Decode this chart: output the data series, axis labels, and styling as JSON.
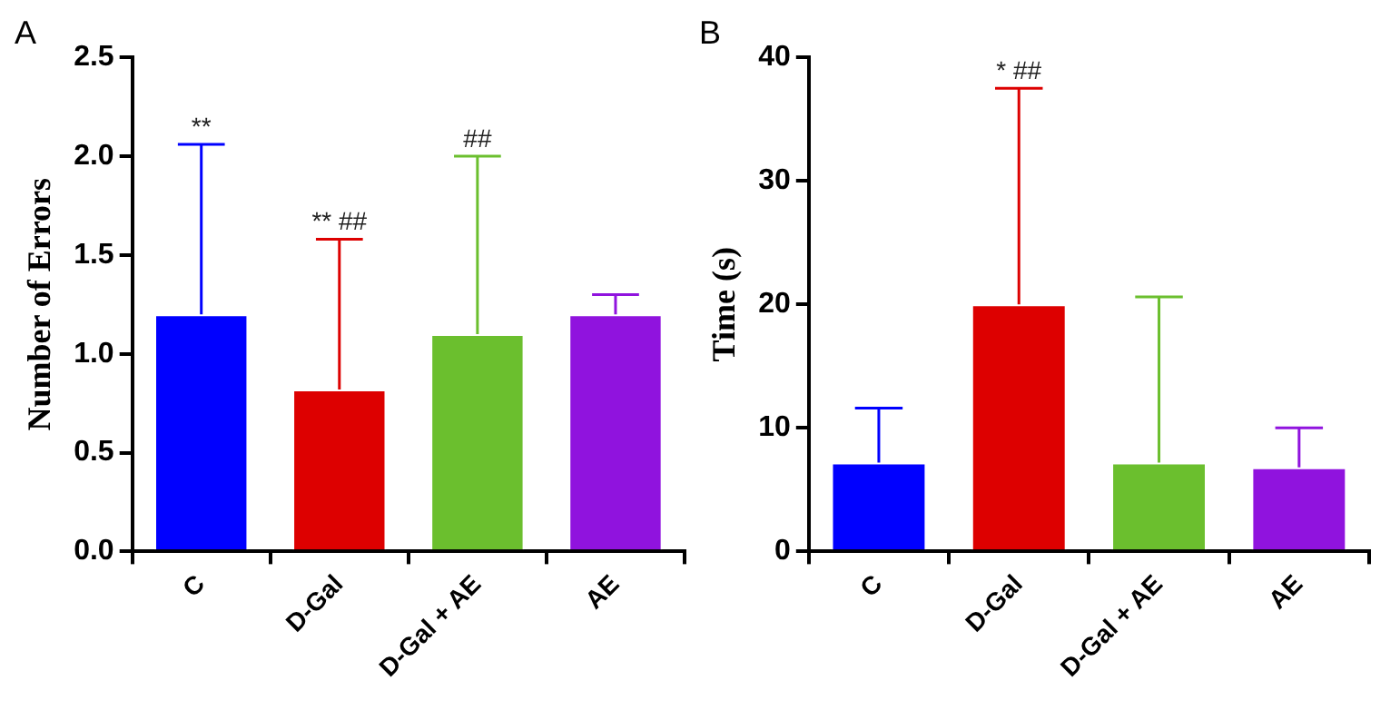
{
  "chart_data": [
    {
      "type": "bar",
      "title": "A",
      "ylabel": "Number of Errors",
      "categories": [
        "C",
        "D-Gal",
        "D-Gal + AE",
        "AE"
      ],
      "values": [
        1.2,
        0.82,
        1.1,
        1.2
      ],
      "colors": [
        "#0000ff",
        "#dd0000",
        "#6bbf2e",
        "#9013de"
      ],
      "errors": [
        [
          1.2,
          2.06
        ],
        [
          0.82,
          1.58
        ],
        [
          1.1,
          2.0
        ],
        [
          1.2,
          1.3
        ]
      ],
      "ylim": [
        0,
        2.5
      ],
      "yticks": [
        {
          "value": 0,
          "label": "0.0"
        },
        0.5,
        {
          "value": 1,
          "label": "1.0"
        },
        1.5,
        {
          "value": 2,
          "label": "2.0"
        },
        2.5
      ],
      "grid": false,
      "annotations": [
        {
          "text": "**",
          "x": "C",
          "y": 2.06
        },
        {
          "text": "** ##",
          "x": "D-Gal",
          "y": 1.58
        },
        {
          "text": "##",
          "x": "D-Gal + AE",
          "y": 2.0
        }
      ]
    },
    {
      "type": "bar",
      "title": "B",
      "ylabel": "Time (s)",
      "categories": [
        "C",
        "D-Gal",
        "D-Gal + AE",
        "AE"
      ],
      "values": [
        7.2,
        20.0,
        7.2,
        6.8
      ],
      "colors": [
        "#0000ff",
        "#dd0000",
        "#6bbf2e",
        "#9013de"
      ],
      "errors": [
        [
          7.2,
          11.6
        ],
        [
          20.0,
          37.5
        ],
        [
          7.2,
          20.6
        ],
        [
          6.8,
          10.0
        ]
      ],
      "ylim": [
        0,
        40
      ],
      "yticks": [
        0,
        10,
        20,
        30,
        40
      ],
      "grid": false,
      "annotations": [
        {
          "text": "* ##",
          "x": "D-Gal",
          "y": 37.5
        }
      ]
    }
  ]
}
